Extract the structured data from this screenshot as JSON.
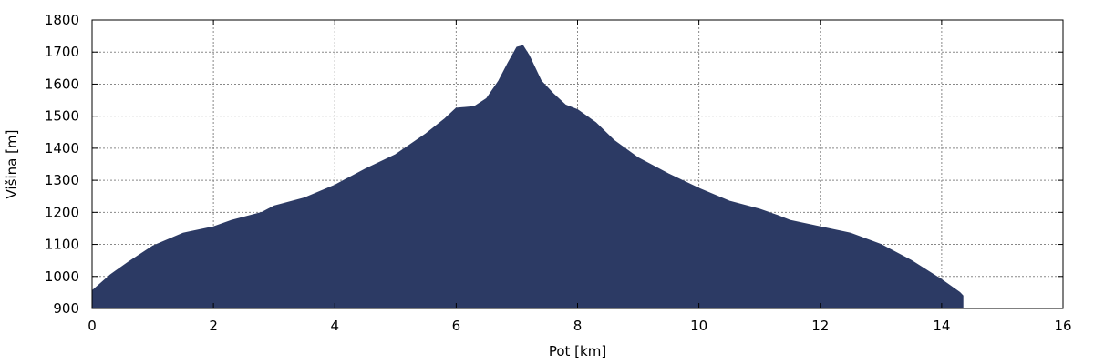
{
  "chart_data": {
    "type": "area",
    "xlabel": "Pot [km]",
    "ylabel": "Višina [m]",
    "xlim": [
      0,
      16
    ],
    "ylim": [
      900,
      1800
    ],
    "x_ticks": [
      "0",
      "2",
      "4",
      "6",
      "8",
      "10",
      "12",
      "14",
      "16"
    ],
    "y_ticks": [
      "900",
      "1000",
      "1100",
      "1200",
      "1300",
      "1400",
      "1500",
      "1600",
      "1700",
      "1800"
    ],
    "grid": true,
    "fill_color": "#2c3a64",
    "series": [
      {
        "x": [
          0,
          0.3,
          0.6,
          1.0,
          1.5,
          2.0,
          2.3,
          2.8,
          3.0,
          3.5,
          4.0,
          4.5,
          5.0,
          5.5,
          5.8,
          6.0,
          6.3,
          6.5,
          6.7,
          6.85,
          7.0,
          7.1,
          7.2,
          7.4,
          7.6,
          7.8,
          8.0,
          8.3,
          8.6,
          9.0,
          9.5,
          10.0,
          10.5,
          11.0,
          11.3,
          11.5,
          12.0,
          12.5,
          13.0,
          13.5,
          14.0,
          14.3,
          14.35
        ],
        "y": [
          955,
          1005,
          1045,
          1095,
          1135,
          1155,
          1175,
          1200,
          1220,
          1245,
          1285,
          1335,
          1380,
          1445,
          1490,
          1525,
          1530,
          1555,
          1610,
          1665,
          1715,
          1720,
          1690,
          1610,
          1570,
          1535,
          1520,
          1480,
          1425,
          1370,
          1320,
          1275,
          1235,
          1210,
          1190,
          1175,
          1155,
          1135,
          1100,
          1050,
          990,
          950,
          940
        ]
      }
    ]
  }
}
